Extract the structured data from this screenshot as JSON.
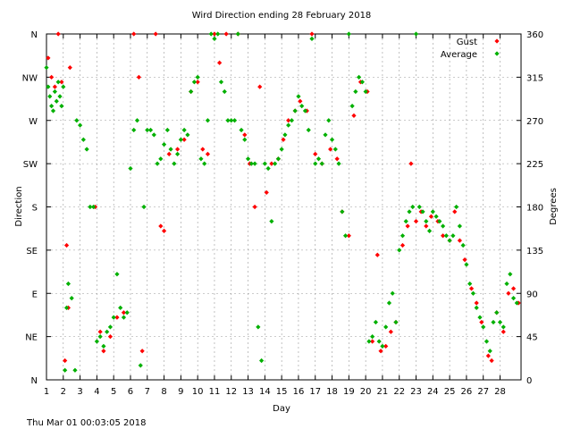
{
  "chart_data": {
    "type": "scatter",
    "title": "Wird Direction ending 28 February 2018",
    "xlabel": "Day",
    "ylabel_left": "Direction",
    "ylabel_right": "Degrees",
    "footer": "Thu Mar 01 00:03:05 2018",
    "x_ticks": [
      "1",
      "2",
      "3",
      "4",
      "5",
      "6",
      "7",
      "8",
      "9",
      "10",
      "11",
      "12",
      "13",
      "14",
      "15",
      "16",
      "17",
      "18",
      "19",
      "20",
      "21",
      "22",
      "23",
      "24",
      "25",
      "26",
      "27",
      "28"
    ],
    "xlim": [
      1,
      29.25
    ],
    "ylim": [
      0,
      360
    ],
    "y_ticks_left": [
      "N",
      "NE",
      "E",
      "SE",
      "S",
      "SW",
      "W",
      "NW",
      "N"
    ],
    "y_ticks_right": [
      "0",
      "45",
      "90",
      "135",
      "180",
      "225",
      "270",
      "315",
      "360"
    ],
    "grid": true,
    "legend_position": "top-right",
    "series": [
      {
        "name": "Gust",
        "color": "#ff0000",
        "points": [
          [
            1.1,
            335
          ],
          [
            1.3,
            315
          ],
          [
            1.5,
            305
          ],
          [
            1.7,
            360
          ],
          [
            1.9,
            310
          ],
          [
            2.1,
            20
          ],
          [
            2.2,
            140
          ],
          [
            2.3,
            75
          ],
          [
            2.4,
            325
          ],
          [
            3.9,
            180
          ],
          [
            4.2,
            50
          ],
          [
            4.4,
            30
          ],
          [
            4.8,
            45
          ],
          [
            5.2,
            65
          ],
          [
            5.6,
            70
          ],
          [
            6.2,
            360
          ],
          [
            6.5,
            315
          ],
          [
            6.7,
            30
          ],
          [
            7.5,
            360
          ],
          [
            7.8,
            160
          ],
          [
            8.0,
            155
          ],
          [
            8.3,
            235
          ],
          [
            8.8,
            240
          ],
          [
            9.2,
            250
          ],
          [
            9.6,
            300
          ],
          [
            10.0,
            310
          ],
          [
            10.3,
            240
          ],
          [
            10.6,
            235
          ],
          [
            11.0,
            360
          ],
          [
            11.3,
            330
          ],
          [
            11.7,
            360
          ],
          [
            12.4,
            360
          ],
          [
            12.8,
            255
          ],
          [
            13.1,
            225
          ],
          [
            13.4,
            180
          ],
          [
            13.7,
            305
          ],
          [
            14.1,
            195
          ],
          [
            14.4,
            225
          ],
          [
            14.8,
            230
          ],
          [
            15.1,
            250
          ],
          [
            15.4,
            270
          ],
          [
            15.8,
            280
          ],
          [
            16.1,
            290
          ],
          [
            16.5,
            280
          ],
          [
            16.8,
            360
          ],
          [
            17.0,
            235
          ],
          [
            17.4,
            225
          ],
          [
            17.9,
            240
          ],
          [
            18.3,
            230
          ],
          [
            18.6,
            175
          ],
          [
            19.0,
            150
          ],
          [
            19.3,
            275
          ],
          [
            19.7,
            310
          ],
          [
            20.1,
            300
          ],
          [
            20.4,
            40
          ],
          [
            20.7,
            130
          ],
          [
            20.9,
            30
          ],
          [
            21.2,
            35
          ],
          [
            21.5,
            50
          ],
          [
            21.8,
            60
          ],
          [
            22.2,
            140
          ],
          [
            22.5,
            160
          ],
          [
            22.7,
            225
          ],
          [
            23.0,
            165
          ],
          [
            23.3,
            175
          ],
          [
            23.6,
            160
          ],
          [
            23.9,
            170
          ],
          [
            24.3,
            165
          ],
          [
            24.6,
            150
          ],
          [
            25.0,
            145
          ],
          [
            25.3,
            175
          ],
          [
            25.6,
            145
          ],
          [
            25.9,
            125
          ],
          [
            26.3,
            95
          ],
          [
            26.6,
            80
          ],
          [
            26.9,
            60
          ],
          [
            27.3,
            25
          ],
          [
            27.5,
            20
          ],
          [
            27.8,
            70
          ],
          [
            28.2,
            50
          ],
          [
            28.5,
            90
          ],
          [
            28.8,
            95
          ],
          [
            29.1,
            80
          ]
        ]
      },
      {
        "name": "Average",
        "color": "#00b000",
        "points": [
          [
            1.0,
            325
          ],
          [
            1.1,
            305
          ],
          [
            1.2,
            295
          ],
          [
            1.3,
            285
          ],
          [
            1.4,
            280
          ],
          [
            1.5,
            300
          ],
          [
            1.6,
            290
          ],
          [
            1.7,
            310
          ],
          [
            1.8,
            295
          ],
          [
            1.9,
            285
          ],
          [
            2.0,
            305
          ],
          [
            2.1,
            10
          ],
          [
            2.2,
            75
          ],
          [
            2.3,
            100
          ],
          [
            2.5,
            85
          ],
          [
            2.7,
            10
          ],
          [
            2.8,
            270
          ],
          [
            3.0,
            265
          ],
          [
            3.2,
            250
          ],
          [
            3.4,
            240
          ],
          [
            3.6,
            180
          ],
          [
            3.8,
            180
          ],
          [
            4.0,
            40
          ],
          [
            4.2,
            45
          ],
          [
            4.4,
            35
          ],
          [
            4.6,
            50
          ],
          [
            4.8,
            55
          ],
          [
            5.0,
            65
          ],
          [
            5.2,
            110
          ],
          [
            5.4,
            75
          ],
          [
            5.6,
            65
          ],
          [
            5.8,
            70
          ],
          [
            6.0,
            220
          ],
          [
            6.2,
            260
          ],
          [
            6.4,
            270
          ],
          [
            6.6,
            15
          ],
          [
            6.8,
            180
          ],
          [
            7.0,
            260
          ],
          [
            7.2,
            260
          ],
          [
            7.4,
            255
          ],
          [
            7.6,
            225
          ],
          [
            7.8,
            230
          ],
          [
            8.0,
            245
          ],
          [
            8.2,
            260
          ],
          [
            8.4,
            240
          ],
          [
            8.6,
            225
          ],
          [
            8.8,
            235
          ],
          [
            9.0,
            250
          ],
          [
            9.2,
            260
          ],
          [
            9.4,
            255
          ],
          [
            9.6,
            300
          ],
          [
            9.8,
            310
          ],
          [
            10.0,
            315
          ],
          [
            10.2,
            230
          ],
          [
            10.4,
            225
          ],
          [
            10.6,
            270
          ],
          [
            10.8,
            360
          ],
          [
            11.0,
            355
          ],
          [
            11.2,
            360
          ],
          [
            11.4,
            310
          ],
          [
            11.6,
            300
          ],
          [
            11.8,
            270
          ],
          [
            12.0,
            270
          ],
          [
            12.2,
            270
          ],
          [
            12.4,
            360
          ],
          [
            12.6,
            260
          ],
          [
            12.8,
            250
          ],
          [
            13.0,
            230
          ],
          [
            13.2,
            225
          ],
          [
            13.4,
            225
          ],
          [
            13.6,
            55
          ],
          [
            13.8,
            20
          ],
          [
            14.0,
            225
          ],
          [
            14.2,
            220
          ],
          [
            14.4,
            165
          ],
          [
            14.6,
            225
          ],
          [
            14.8,
            230
          ],
          [
            15.0,
            240
          ],
          [
            15.2,
            255
          ],
          [
            15.4,
            265
          ],
          [
            15.6,
            270
          ],
          [
            15.8,
            280
          ],
          [
            16.0,
            295
          ],
          [
            16.2,
            285
          ],
          [
            16.4,
            280
          ],
          [
            16.6,
            260
          ],
          [
            16.8,
            355
          ],
          [
            17.0,
            225
          ],
          [
            17.2,
            230
          ],
          [
            17.4,
            225
          ],
          [
            17.6,
            255
          ],
          [
            17.8,
            270
          ],
          [
            18.0,
            250
          ],
          [
            18.2,
            240
          ],
          [
            18.4,
            225
          ],
          [
            18.6,
            175
          ],
          [
            18.8,
            150
          ],
          [
            19.0,
            360
          ],
          [
            19.2,
            285
          ],
          [
            19.4,
            300
          ],
          [
            19.6,
            315
          ],
          [
            19.8,
            310
          ],
          [
            20.0,
            300
          ],
          [
            20.2,
            40
          ],
          [
            20.4,
            45
          ],
          [
            20.6,
            60
          ],
          [
            20.8,
            40
          ],
          [
            21.0,
            35
          ],
          [
            21.2,
            55
          ],
          [
            21.4,
            80
          ],
          [
            21.6,
            90
          ],
          [
            21.8,
            60
          ],
          [
            22.0,
            135
          ],
          [
            22.2,
            150
          ],
          [
            22.4,
            165
          ],
          [
            22.6,
            175
          ],
          [
            22.8,
            180
          ],
          [
            23.0,
            360
          ],
          [
            23.2,
            180
          ],
          [
            23.4,
            175
          ],
          [
            23.6,
            165
          ],
          [
            23.8,
            155
          ],
          [
            24.0,
            175
          ],
          [
            24.2,
            170
          ],
          [
            24.4,
            165
          ],
          [
            24.6,
            160
          ],
          [
            24.8,
            150
          ],
          [
            25.0,
            145
          ],
          [
            25.2,
            150
          ],
          [
            25.4,
            180
          ],
          [
            25.6,
            160
          ],
          [
            25.8,
            140
          ],
          [
            26.0,
            120
          ],
          [
            26.2,
            100
          ],
          [
            26.4,
            90
          ],
          [
            26.6,
            75
          ],
          [
            26.8,
            65
          ],
          [
            27.0,
            55
          ],
          [
            27.2,
            40
          ],
          [
            27.4,
            30
          ],
          [
            27.6,
            60
          ],
          [
            27.8,
            70
          ],
          [
            28.0,
            60
          ],
          [
            28.2,
            55
          ],
          [
            28.4,
            100
          ],
          [
            28.6,
            110
          ],
          [
            28.8,
            85
          ],
          [
            29.0,
            80
          ]
        ]
      }
    ]
  }
}
